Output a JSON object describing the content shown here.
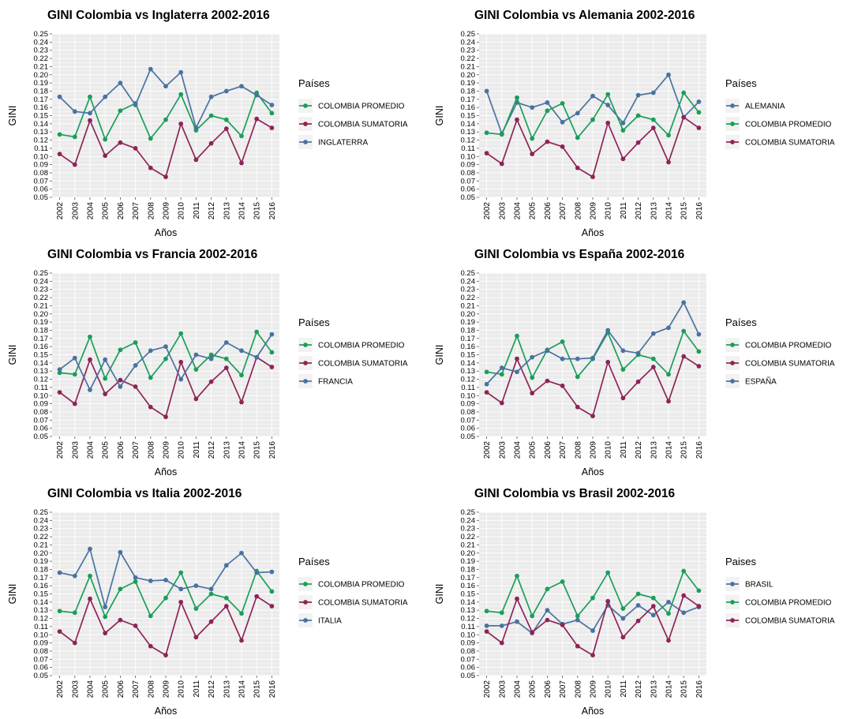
{
  "colors": {
    "panel": "#ebebeb",
    "grid": "#ffffff",
    "colombia_promedio": "#1b9e5a",
    "colombia_sumatoria": "#8e2457",
    "comparison_country": "#4a72a0"
  },
  "chart_data": [
    {
      "type": "line",
      "title": "GINI Colombia vs Inglaterra 2002-2016",
      "xlabel": "Años",
      "ylabel": "GINI",
      "legend_title": "Países",
      "legend_position": "right",
      "grid": true,
      "ylim": [
        0.05,
        0.25
      ],
      "x": [
        "2002",
        "2003",
        "2004",
        "2005",
        "2006",
        "2007",
        "2008",
        "2009",
        "2010",
        "2011",
        "2012",
        "2013",
        "2014",
        "2015",
        "2016"
      ],
      "yticks": [
        "0.05",
        "0.06",
        "0.07",
        "0.08",
        "0.09",
        "0.10",
        "0.11",
        "0.12",
        "0.13",
        "0.14",
        "0.15",
        "0.16",
        "0.17",
        "0.18",
        "0.19",
        "0.20",
        "0.21",
        "0.22",
        "0.23",
        "0.24",
        "0.25"
      ],
      "series": [
        {
          "name": "COLOMBIA PROMEDIO",
          "color": "#1b9e5a",
          "values": [
            0.127,
            0.124,
            0.173,
            0.121,
            0.156,
            0.165,
            0.122,
            0.145,
            0.176,
            0.132,
            0.15,
            0.145,
            0.125,
            0.178,
            0.153
          ]
        },
        {
          "name": "COLOMBIA SUMATORIA",
          "color": "#8e2457",
          "values": [
            0.103,
            0.09,
            0.144,
            0.101,
            0.117,
            0.11,
            0.086,
            0.075,
            0.14,
            0.096,
            0.116,
            0.134,
            0.092,
            0.146,
            0.135
          ]
        },
        {
          "name": "INGLATERRA",
          "color": "#4a72a0",
          "values": [
            0.173,
            0.155,
            0.153,
            0.173,
            0.19,
            0.163,
            0.207,
            0.186,
            0.203,
            0.135,
            0.173,
            0.18,
            0.186,
            0.175,
            0.163
          ]
        }
      ]
    },
    {
      "type": "line",
      "title": "GINI Colombia vs Alemania 2002-2016",
      "xlabel": "Años",
      "ylabel": "GINI",
      "legend_title": "Países",
      "legend_position": "right",
      "grid": true,
      "ylim": [
        0.05,
        0.25
      ],
      "x": [
        "2002",
        "2003",
        "2004",
        "2005",
        "2006",
        "2007",
        "2008",
        "2009",
        "2010",
        "2011",
        "2012",
        "2013",
        "2014",
        "2015",
        "2016"
      ],
      "yticks": [
        "0.05",
        "0.06",
        "0.07",
        "0.08",
        "0.09",
        "0.10",
        "0.11",
        "0.12",
        "0.13",
        "0.14",
        "0.15",
        "0.16",
        "0.17",
        "0.18",
        "0.19",
        "0.20",
        "0.21",
        "0.22",
        "0.23",
        "0.24",
        "0.25"
      ],
      "series": [
        {
          "name": "ALEMANIA",
          "color": "#4a72a0",
          "values": [
            0.18,
            0.128,
            0.166,
            0.16,
            0.166,
            0.142,
            0.153,
            0.174,
            0.163,
            0.141,
            0.175,
            0.178,
            0.2,
            0.148,
            0.167
          ]
        },
        {
          "name": "COLOMBIA PROMEDIO",
          "color": "#1b9e5a",
          "values": [
            0.129,
            0.127,
            0.172,
            0.122,
            0.156,
            0.165,
            0.123,
            0.145,
            0.176,
            0.132,
            0.15,
            0.145,
            0.126,
            0.178,
            0.154
          ]
        },
        {
          "name": "COLOMBIA SUMATORIA",
          "color": "#8e2457",
          "values": [
            0.104,
            0.091,
            0.145,
            0.103,
            0.118,
            0.112,
            0.086,
            0.075,
            0.141,
            0.097,
            0.117,
            0.135,
            0.093,
            0.148,
            0.135
          ]
        }
      ]
    },
    {
      "type": "line",
      "title": "GINI Colombia vs Francia 2002-2016",
      "xlabel": "Años",
      "ylabel": "GINI",
      "legend_title": "Países",
      "legend_position": "right",
      "grid": true,
      "ylim": [
        0.05,
        0.25
      ],
      "x": [
        "2002",
        "2003",
        "2004",
        "2005",
        "2006",
        "2007",
        "2008",
        "2009",
        "2010",
        "2011",
        "2012",
        "2013",
        "2014",
        "2015",
        "2016"
      ],
      "yticks": [
        "0.05",
        "0.06",
        "0.07",
        "0.08",
        "0.09",
        "0.10",
        "0.11",
        "0.12",
        "0.13",
        "0.14",
        "0.15",
        "0.16",
        "0.17",
        "0.18",
        "0.19",
        "0.20",
        "0.21",
        "0.22",
        "0.23",
        "0.24",
        "0.25"
      ],
      "series": [
        {
          "name": "COLOMBIA PROMEDIO",
          "color": "#1b9e5a",
          "values": [
            0.128,
            0.126,
            0.172,
            0.121,
            0.156,
            0.165,
            0.122,
            0.145,
            0.176,
            0.132,
            0.15,
            0.145,
            0.125,
            0.178,
            0.153
          ]
        },
        {
          "name": "COLOMBIA SUMATORIA",
          "color": "#8e2457",
          "values": [
            0.104,
            0.09,
            0.144,
            0.102,
            0.119,
            0.111,
            0.086,
            0.074,
            0.141,
            0.096,
            0.117,
            0.134,
            0.092,
            0.147,
            0.135
          ]
        },
        {
          "name": "FRANCIA",
          "color": "#4a72a0",
          "values": [
            0.132,
            0.146,
            0.107,
            0.144,
            0.111,
            0.137,
            0.155,
            0.16,
            0.12,
            0.15,
            0.145,
            0.165,
            0.155,
            0.147,
            0.175
          ]
        }
      ]
    },
    {
      "type": "line",
      "title": "GINI Colombia vs España 2002-2016",
      "xlabel": "Años",
      "ylabel": "GINI",
      "legend_title": "Países",
      "legend_position": "right",
      "grid": true,
      "ylim": [
        0.05,
        0.25
      ],
      "x": [
        "2002",
        "2003",
        "2004",
        "2005",
        "2006",
        "2007",
        "2008",
        "2009",
        "2010",
        "2011",
        "2012",
        "2013",
        "2014",
        "2015",
        "2016"
      ],
      "yticks": [
        "0.05",
        "0.06",
        "0.07",
        "0.08",
        "0.09",
        "0.10",
        "0.11",
        "0.12",
        "0.13",
        "0.14",
        "0.15",
        "0.16",
        "0.17",
        "0.18",
        "0.19",
        "0.20",
        "0.21",
        "0.22",
        "0.23",
        "0.24",
        "0.25"
      ],
      "series": [
        {
          "name": "COLOMBIA PROMEDIO",
          "color": "#1b9e5a",
          "values": [
            0.129,
            0.126,
            0.173,
            0.122,
            0.156,
            0.166,
            0.123,
            0.145,
            0.177,
            0.132,
            0.15,
            0.145,
            0.126,
            0.179,
            0.154
          ]
        },
        {
          "name": "COLOMBIA SUMATORIA",
          "color": "#8e2457",
          "values": [
            0.104,
            0.091,
            0.145,
            0.103,
            0.118,
            0.112,
            0.086,
            0.075,
            0.141,
            0.097,
            0.117,
            0.135,
            0.093,
            0.148,
            0.136
          ]
        },
        {
          "name": "ESPAÑA",
          "color": "#4a72a0",
          "values": [
            0.114,
            0.134,
            0.129,
            0.147,
            0.155,
            0.145,
            0.145,
            0.146,
            0.18,
            0.155,
            0.152,
            0.176,
            0.183,
            0.214,
            0.175
          ]
        }
      ]
    },
    {
      "type": "line",
      "title": "GINI Colombia vs Italia 2002-2016",
      "xlabel": "Años",
      "ylabel": "GINI",
      "legend_title": "Países",
      "legend_position": "right",
      "grid": true,
      "ylim": [
        0.05,
        0.25
      ],
      "x": [
        "2002",
        "2003",
        "2004",
        "2005",
        "2006",
        "2007",
        "2008",
        "2009",
        "2010",
        "2011",
        "2012",
        "2013",
        "2014",
        "2015",
        "2016"
      ],
      "yticks": [
        "0.05",
        "0.06",
        "0.07",
        "0.08",
        "0.09",
        "0.10",
        "0.11",
        "0.12",
        "0.13",
        "0.14",
        "0.15",
        "0.16",
        "0.17",
        "0.18",
        "0.19",
        "0.20",
        "0.21",
        "0.22",
        "0.23",
        "0.24",
        "0.25"
      ],
      "series": [
        {
          "name": "COLOMBIA PROMEDIO",
          "color": "#1b9e5a",
          "values": [
            0.129,
            0.127,
            0.172,
            0.122,
            0.156,
            0.165,
            0.123,
            0.145,
            0.176,
            0.132,
            0.15,
            0.145,
            0.126,
            0.178,
            0.153
          ]
        },
        {
          "name": "COLOMBIA SUMATORIA",
          "color": "#8e2457",
          "values": [
            0.104,
            0.09,
            0.144,
            0.102,
            0.118,
            0.111,
            0.086,
            0.075,
            0.14,
            0.097,
            0.116,
            0.135,
            0.093,
            0.147,
            0.135
          ]
        },
        {
          "name": "ITALIA",
          "color": "#4a72a0",
          "values": [
            0.176,
            0.172,
            0.205,
            0.134,
            0.201,
            0.17,
            0.166,
            0.167,
            0.156,
            0.16,
            0.156,
            0.185,
            0.2,
            0.176,
            0.177
          ]
        }
      ]
    },
    {
      "type": "line",
      "title": "GINI Colombia vs Brasil 2002-2016",
      "xlabel": "Años",
      "ylabel": "GINI",
      "legend_title": "Paises",
      "legend_position": "right",
      "grid": true,
      "ylim": [
        0.05,
        0.25
      ],
      "x": [
        "2002",
        "2003",
        "2004",
        "2005",
        "2006",
        "2007",
        "2008",
        "2009",
        "2010",
        "2011",
        "2012",
        "2013",
        "2014",
        "2015",
        "2016"
      ],
      "yticks": [
        "0.05",
        "0.06",
        "0.07",
        "0.08",
        "0.09",
        "0.10",
        "0.11",
        "0.12",
        "0.13",
        "0.14",
        "0.15",
        "0.16",
        "0.17",
        "0.18",
        "0.19",
        "0.20",
        "0.21",
        "0.22",
        "0.23",
        "0.24",
        "0.25"
      ],
      "series": [
        {
          "name": "BRASIL",
          "color": "#4a72a0",
          "values": [
            0.111,
            0.111,
            0.116,
            0.102,
            0.13,
            0.113,
            0.118,
            0.105,
            0.136,
            0.12,
            0.136,
            0.124,
            0.14,
            0.127,
            0.134
          ]
        },
        {
          "name": "COLOMBIA PROMEDIO",
          "color": "#1b9e5a",
          "values": [
            0.129,
            0.127,
            0.172,
            0.123,
            0.156,
            0.165,
            0.123,
            0.145,
            0.176,
            0.132,
            0.15,
            0.145,
            0.126,
            0.178,
            0.154
          ]
        },
        {
          "name": "COLOMBIA SUMATORIA",
          "color": "#8e2457",
          "values": [
            0.104,
            0.09,
            0.144,
            0.103,
            0.118,
            0.112,
            0.086,
            0.075,
            0.141,
            0.097,
            0.117,
            0.135,
            0.093,
            0.148,
            0.135
          ]
        }
      ]
    }
  ]
}
